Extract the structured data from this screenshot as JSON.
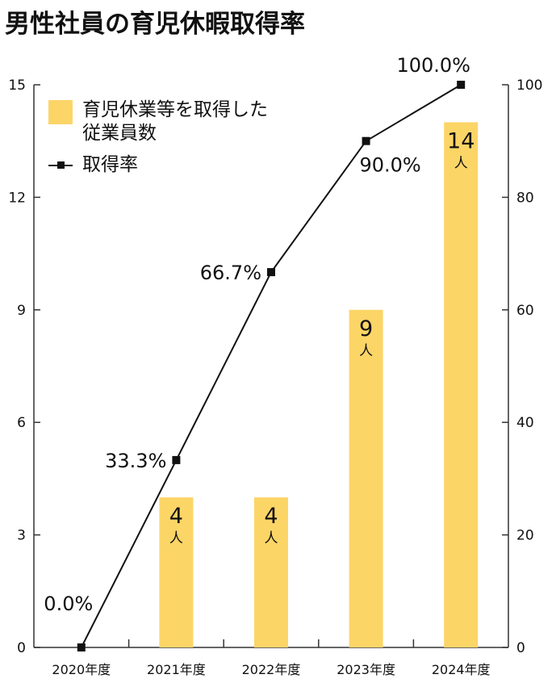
{
  "title": "男性社員の育児休暇取得率",
  "legend": {
    "bar_label": "育児休業等を取得した\n従業員数",
    "line_label": "取得率"
  },
  "colors": {
    "bar": "#fcd567",
    "line": "#111111",
    "axis": "#333333"
  },
  "chart_data": {
    "type": "bar+line",
    "categories": [
      "2020年度",
      "2021年度",
      "2022年度",
      "2023年度",
      "2024年度"
    ],
    "series": [
      {
        "name": "育児休業等を取得した従業員数",
        "type": "bar",
        "axis": "left",
        "values": [
          0,
          4,
          4,
          9,
          14
        ],
        "data_labels": [
          {
            "number": "",
            "unit": ""
          },
          {
            "number": "4",
            "unit": "人"
          },
          {
            "number": "4",
            "unit": "人"
          },
          {
            "number": "9",
            "unit": "人"
          },
          {
            "number": "14",
            "unit": "人"
          }
        ]
      },
      {
        "name": "取得率",
        "type": "line",
        "axis": "right",
        "values": [
          0.0,
          33.3,
          66.7,
          90.0,
          100.0
        ],
        "data_labels": [
          "0.0%",
          "33.3%",
          "66.7%",
          "90.0%",
          "100.0%"
        ]
      }
    ],
    "left_axis": {
      "ylim": [
        0,
        15
      ],
      "ticks": [
        "0",
        "3",
        "6",
        "9",
        "12",
        "15"
      ]
    },
    "right_axis": {
      "ylim": [
        0,
        100
      ],
      "ticks": [
        "0",
        "20",
        "40",
        "60",
        "80",
        "100"
      ]
    },
    "grid": false,
    "legend_position": "top-left"
  }
}
